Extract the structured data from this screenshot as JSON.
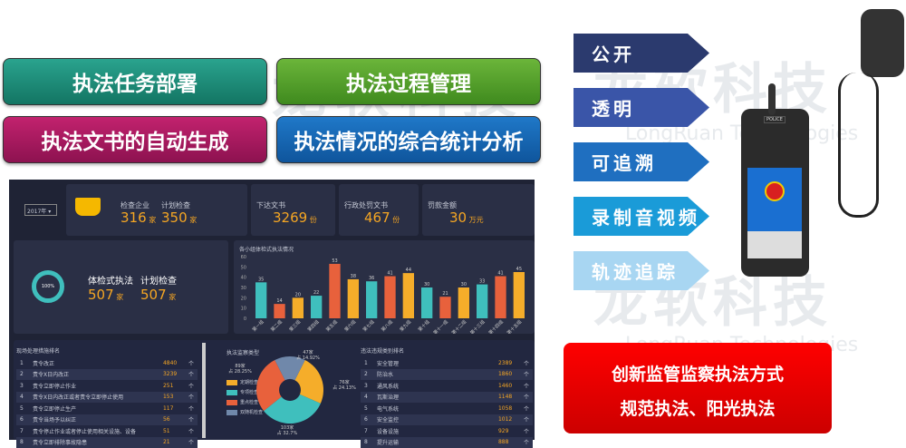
{
  "watermark": {
    "cn": "龙软科技",
    "en": "LongRuan Technologies"
  },
  "features": [
    "执法任务部署",
    "执法过程管理",
    "执法文书的自动生成",
    "执法情况的综合统计分析"
  ],
  "arrows": [
    {
      "label": "公开",
      "color": "#2b3a6e"
    },
    {
      "label": "透明",
      "color": "#3a55a8"
    },
    {
      "label": "可追溯",
      "color": "#1f6fc0"
    },
    {
      "label": "录制音视频",
      "color": "#1a9bd8"
    },
    {
      "label": "轨迹追踪",
      "color": "#a8d6f2"
    }
  ],
  "device": {
    "label": "POLICE"
  },
  "slogan": {
    "line1": "创新监管监察执法方式",
    "line2": "规范执法、阳光执法"
  },
  "dashboard": {
    "year": "2017年",
    "stats": {
      "inspected_label": "检查企业",
      "inspected": "316",
      "inspected_unit": "家",
      "planned_label": "计划检查",
      "planned": "350",
      "planned_unit": "家",
      "docs_label": "下达文书",
      "docs": "3269",
      "docs_unit": "份",
      "penalty_label": "行政处罚文书",
      "penalty": "467",
      "penalty_unit": "份",
      "fine_label": "罚款金额",
      "fine": "30",
      "fine_unit": "万元"
    },
    "physical": {
      "percent": "100%",
      "label1": "体检式执法",
      "value1": "507",
      "unit1": "家",
      "label2": "计划检查",
      "value2": "507",
      "unit2": "家"
    },
    "chart_data": {
      "type": "bar",
      "title": "各小组体检式执法情况",
      "ylim": [
        0,
        60
      ],
      "yticks": [
        0,
        10,
        20,
        30,
        40,
        50,
        60
      ],
      "categories": [
        "第一组",
        "第二组",
        "第三组",
        "第四组",
        "第五组",
        "第六组",
        "第七组",
        "第八组",
        "第九组",
        "第十组",
        "第十一组",
        "第十二组",
        "第十三组",
        "第十四组",
        "第十五组"
      ],
      "values": [
        35,
        14,
        20,
        22,
        53,
        38,
        36,
        41,
        44,
        30,
        21,
        30,
        33,
        41,
        45
      ],
      "colors": [
        "#3fbfbd",
        "#e8613c",
        "#f5ad2a"
      ]
    },
    "measures": {
      "title": "现场处理措施排名",
      "unit": "个",
      "items": [
        {
          "rank": "1",
          "name": "责令改正",
          "value": "4840"
        },
        {
          "rank": "2",
          "name": "责令X日内改正",
          "value": "3239"
        },
        {
          "rank": "3",
          "name": "责令立即停止作业",
          "value": "251"
        },
        {
          "rank": "4",
          "name": "责令X日内改正或者责令立即停止使用",
          "value": "153"
        },
        {
          "rank": "5",
          "name": "责令立即停止生产",
          "value": "117"
        },
        {
          "rank": "6",
          "name": "责令当场予以纠正",
          "value": "56"
        },
        {
          "rank": "7",
          "name": "责令停止作业或者停止使用相关设施、设备",
          "value": "51"
        },
        {
          "rank": "8",
          "name": "责令立即排除事故隐患",
          "value": "21"
        }
      ]
    },
    "pie": {
      "title": "执法监察类型",
      "slices": [
        {
          "name": "定期检查",
          "value": 76,
          "label": "76家",
          "pct": "占 24.13%",
          "color": "#f5ad2a"
        },
        {
          "name": "专项检查",
          "value": 103,
          "label": "103家",
          "pct": "占 32.7%",
          "color": "#3fbfbd"
        },
        {
          "name": "重点检查",
          "value": 89,
          "label": "89家",
          "pct": "占 28.25%",
          "color": "#e8613c"
        },
        {
          "name": "双随机检查",
          "value": 47,
          "label": "47家",
          "pct": "占 14.92%",
          "color": "#7088aa"
        }
      ]
    },
    "violations": {
      "title": "违法违规类别排名",
      "unit": "个",
      "items": [
        {
          "rank": "1",
          "name": "安全管理",
          "value": "2389"
        },
        {
          "rank": "2",
          "name": "防治水",
          "value": "1860"
        },
        {
          "rank": "3",
          "name": "通风系统",
          "value": "1460"
        },
        {
          "rank": "4",
          "name": "瓦斯治理",
          "value": "1148"
        },
        {
          "rank": "5",
          "name": "电气系统",
          "value": "1058"
        },
        {
          "rank": "6",
          "name": "安全监控",
          "value": "1012"
        },
        {
          "rank": "7",
          "name": "设备设施",
          "value": "929"
        },
        {
          "rank": "8",
          "name": "提升运输",
          "value": "888"
        }
      ]
    }
  }
}
